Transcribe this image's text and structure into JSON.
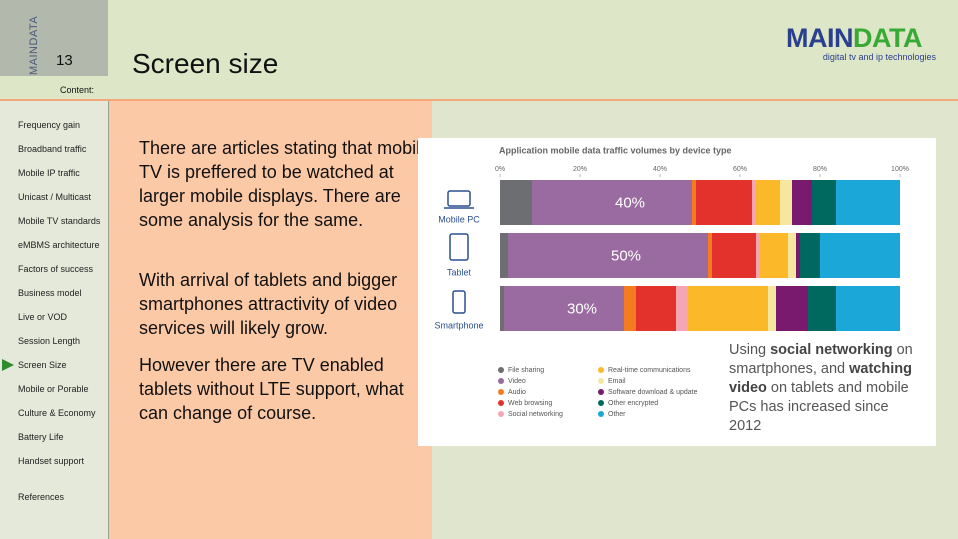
{
  "header": {
    "vertical_brand": "MAINDATA",
    "slide_number": "13",
    "title": "Screen size",
    "content_label": "Content:"
  },
  "logo": {
    "name_main": "MAIN",
    "name_accent": "DATA",
    "tagline": "digital tv and ip technologies"
  },
  "sidebar": {
    "items": [
      "Frequency gain",
      "Broadband traffic",
      "Mobile IP traffic",
      "Unicast / Multicast",
      "Mobile TV standards",
      "eMBMS architecture",
      "Factors of success",
      "Business model",
      "Live or VOD",
      "Session Length",
      "Screen Size",
      "Mobile or Porable",
      "Culture & Economy",
      "Battery Life",
      "Handset support",
      "References"
    ],
    "current": 10
  },
  "body": {
    "paragraphs": [
      "There are articles stating that mobile TV is preffered to be watched at larger mobile displays. There are some analysis for the same.",
      "With arrival of tablets and bigger smartphones attractivity of video services will likely grow.",
      "However there are TV enabled tablets without LTE support, what can change of course."
    ]
  },
  "figure": {
    "type": "bar",
    "orientation": "horizontal",
    "stacked": true,
    "title": "Application mobile data traffic volumes by device type",
    "categories": [
      "Mobile PC",
      "Tablet",
      "Smartphone"
    ],
    "xlim": [
      0,
      100
    ],
    "xticks": [
      {
        "value": 0,
        "label": "0%"
      },
      {
        "value": 20,
        "label": "20%"
      },
      {
        "value": 40,
        "label": "40%"
      },
      {
        "value": 60,
        "label": "60%"
      },
      {
        "value": 80,
        "label": "80%"
      },
      {
        "value": 100,
        "label": "100%"
      }
    ],
    "series": [
      {
        "name": "File sharing",
        "color": "#6d6e71",
        "values": [
          8,
          2,
          1
        ]
      },
      {
        "name": "Video",
        "color": "#9a6ba0",
        "values": [
          40,
          50,
          30
        ],
        "value_labels": [
          "40%",
          "50%",
          "30%"
        ]
      },
      {
        "name": "Audio",
        "color": "#f47b20",
        "values": [
          1,
          1,
          3
        ]
      },
      {
        "name": "Web browsing",
        "color": "#e2322b",
        "values": [
          14,
          11,
          10
        ]
      },
      {
        "name": "Social networking",
        "color": "#f4a6b4",
        "values": [
          1,
          1,
          3
        ]
      },
      {
        "name": "Real-time communications",
        "color": "#fbb829",
        "values": [
          6,
          7,
          20
        ]
      },
      {
        "name": "Email",
        "color": "#f6e7a0",
        "values": [
          3,
          2,
          2
        ]
      },
      {
        "name": "Software download & update",
        "color": "#7a1a6e",
        "values": [
          5,
          1,
          8
        ]
      },
      {
        "name": "Other encrypted",
        "color": "#00695f",
        "values": [
          6,
          5,
          7
        ]
      },
      {
        "name": "Other",
        "color": "#1ba8d8",
        "values": [
          16,
          20,
          16
        ]
      }
    ],
    "legend_position": "bottom-left",
    "annotation": [
      "Using ",
      "social networking",
      " on smartphones, and ",
      "watching video",
      " on tablets and mobile PCs has increased since 2012"
    ]
  }
}
